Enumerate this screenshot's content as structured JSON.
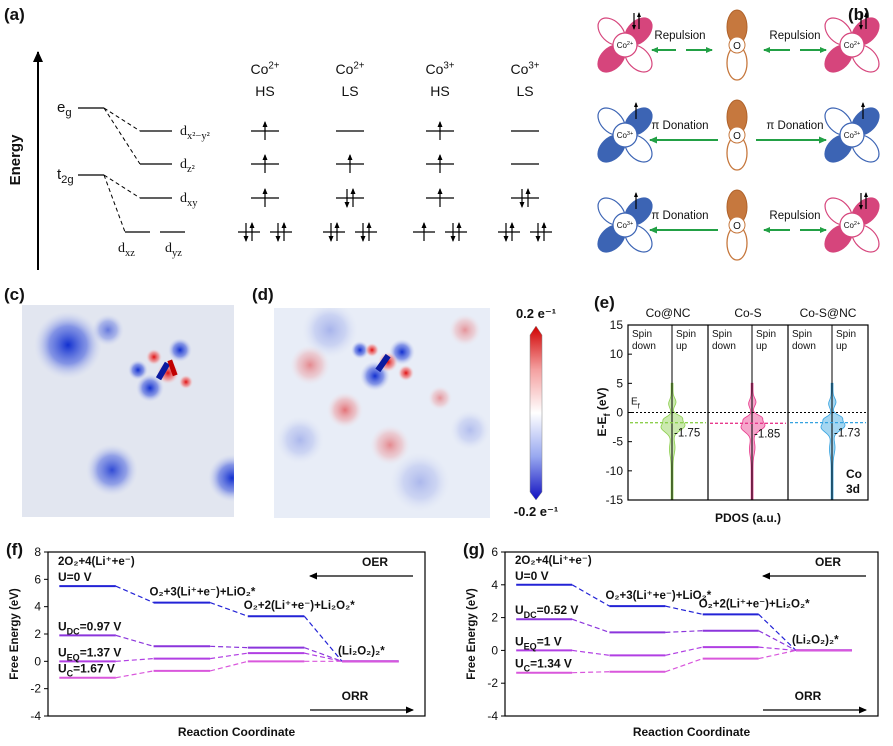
{
  "panel_a": {
    "label": "(a)",
    "axis_label": "Energy",
    "levels": [
      {
        "main": "e",
        "sub": "g"
      },
      {
        "main": "t",
        "sub": "2g"
      }
    ],
    "orbitals": [
      {
        "main": "d",
        "sub": "x²−y²"
      },
      {
        "main": "d",
        "sub": "z²"
      },
      {
        "main": "d",
        "sub": "xy"
      },
      {
        "main": "d",
        "sub": "xz"
      },
      {
        "main": "d",
        "sub": "yz"
      }
    ],
    "columns": [
      {
        "ion": "Co",
        "charge": "2+",
        "spin": "HS"
      },
      {
        "ion": "Co",
        "charge": "2+",
        "spin": "LS"
      },
      {
        "ion": "Co",
        "charge": "3+",
        "spin": "HS"
      },
      {
        "ion": "Co",
        "charge": "3+",
        "spin": "LS"
      }
    ]
  },
  "panel_b": {
    "label": "(b)",
    "oxygen": "O",
    "rows": [
      {
        "left": {
          "ion": "Co",
          "charge": "2+"
        },
        "left_interaction": "Repulsion",
        "right_interaction": "Repulsion",
        "right": {
          "ion": "Co",
          "charge": "2+"
        }
      },
      {
        "left": {
          "ion": "Co",
          "charge": "3+"
        },
        "left_interaction": "π Donation",
        "right_interaction": "π Donation",
        "right": {
          "ion": "Co",
          "charge": "3+"
        }
      },
      {
        "left": {
          "ion": "Co",
          "charge": "3+"
        },
        "left_interaction": "π Donation",
        "right_interaction": "Repulsion",
        "right": {
          "ion": "Co",
          "charge": "2+"
        }
      }
    ]
  },
  "panel_c": {
    "label": "(c)"
  },
  "panel_d": {
    "label": "(d)",
    "colorbar": {
      "max": "0.2 e⁻¹",
      "min": "-0.2 e⁻¹"
    }
  },
  "chart_data": [
    {
      "type": "pdos",
      "label": "(e)",
      "ylabel": {
        "main": "E-E",
        "sub": "f",
        "rest": " (eV)"
      },
      "xlabel": "PDOS (a.u.)",
      "ylim": [
        -15,
        15
      ],
      "yticks": [
        -15,
        -10,
        -5,
        0,
        5,
        10,
        15
      ],
      "fermi_label": {
        "main": "E",
        "sub": "f"
      },
      "spin_down": [
        "Spin",
        "down"
      ],
      "spin_up": [
        "Spin",
        "up"
      ],
      "element_label": [
        "Co",
        "3d"
      ],
      "series": [
        {
          "name": "Co@NC",
          "color": "#8ccf4d",
          "values": [
            -1.75
          ]
        },
        {
          "name": "Co-S",
          "color": "#e8398c",
          "values": [
            -1.85
          ]
        },
        {
          "name": "Co-S@NC",
          "color": "#35a3e0",
          "values": [
            -1.73
          ]
        }
      ]
    },
    {
      "type": "energy-levels",
      "label": "(f)",
      "ylabel": "Free Energy (eV)",
      "xlabel": "Reaction Coordinate",
      "ylim": [
        -4,
        8
      ],
      "yticks": [
        -4,
        -2,
        0,
        2,
        4,
        6,
        8
      ],
      "categories": [
        "2O₂+4(Li⁺+e⁻)",
        "O₂+3(Li⁺+e⁻)+LiO₂*",
        "O₂+2(Li⁺+e⁻)+Li₂O₂*",
        "(Li₂O₂)₂*"
      ],
      "oer": "OER",
      "orr": "ORR",
      "series": [
        {
          "name": {
            "main": "U=0 V"
          },
          "color": "#2323d6",
          "values": [
            5.5,
            4.3,
            3.3,
            0
          ]
        },
        {
          "name": {
            "main": "U",
            "sub": "DC",
            "rest": "=0.97 V"
          },
          "color": "#8b35dc",
          "values": [
            1.9,
            1.1,
            1.0,
            0
          ]
        },
        {
          "name": {
            "main": "U",
            "sub": "EQ",
            "rest": "=1.37 V"
          },
          "color": "#b13fe3",
          "values": [
            0,
            0.2,
            0.6,
            0
          ]
        },
        {
          "name": {
            "main": "U",
            "sub": "C",
            "rest": "=1.67 V"
          },
          "color": "#d957dc",
          "values": [
            -1.2,
            -0.7,
            0,
            0
          ]
        }
      ]
    },
    {
      "type": "energy-levels",
      "label": "(g)",
      "ylabel": "Free Energy (eV)",
      "xlabel": "Reaction Coordinate",
      "ylim": [
        -4,
        6
      ],
      "yticks": [
        -4,
        -2,
        0,
        2,
        4,
        6
      ],
      "categories": [
        "2O₂+4(Li⁺+e⁻)",
        "O₂+3(Li⁺+e⁻)+LiO₂*",
        "O₂+2(Li⁺+e⁻)+Li₂O₂*",
        "(Li₂O₂)₂*"
      ],
      "oer": "OER",
      "orr": "ORR",
      "series": [
        {
          "name": {
            "main": "U=0 V"
          },
          "color": "#2323d6",
          "values": [
            4.0,
            2.7,
            2.2,
            0
          ]
        },
        {
          "name": {
            "main": "U",
            "sub": "DC",
            "rest": "=0.52 V"
          },
          "color": "#8b35dc",
          "values": [
            1.9,
            1.1,
            1.2,
            0
          ]
        },
        {
          "name": {
            "main": "U",
            "sub": "EQ",
            "rest": "=1 V"
          },
          "color": "#b13fe3",
          "values": [
            0,
            -0.3,
            0.2,
            0
          ]
        },
        {
          "name": {
            "main": "U",
            "sub": "C",
            "rest": "=1.34 V"
          },
          "color": "#d957dc",
          "values": [
            -1.36,
            -1.3,
            -0.5,
            0
          ]
        }
      ]
    }
  ]
}
